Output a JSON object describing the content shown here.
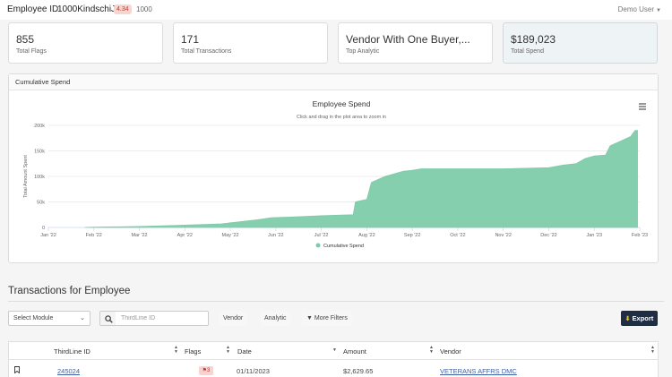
{
  "header": {
    "employee_label": "Employee ID",
    "employee_id": "1000KindschiJ",
    "score": "4.34",
    "score_total": "1000",
    "user": "Demo User"
  },
  "stats": [
    {
      "value": "855",
      "label": "Total Flags"
    },
    {
      "value": "171",
      "label": "Total Transactions"
    },
    {
      "value": "Vendor With One Buyer,...",
      "label": "Top Analytic"
    },
    {
      "value": "$189,023",
      "label": "Total Spend"
    }
  ],
  "chart_card": {
    "title": "Cumulative Spend"
  },
  "chart_data": {
    "type": "area",
    "title": "Employee Spend",
    "subtitle": "Click and drag in the plot area to zoom in",
    "ylabel": "Total Amount Spent",
    "xlabel": "",
    "x_ticks": [
      "Jan '22",
      "Feb '22",
      "Mar '22",
      "Apr '22",
      "May '22",
      "Jun '22",
      "Jul '22",
      "Aug '22",
      "Sep '22",
      "Oct '22",
      "Nov '22",
      "Dec '22",
      "Jan '23",
      "Feb '23"
    ],
    "y_ticks": [
      "0",
      "50k",
      "100k",
      "150k",
      "200k"
    ],
    "ylim": [
      0,
      200000
    ],
    "legend": "bottom-center",
    "series": [
      {
        "name": "Cumulative Spend",
        "color": "#7ecbaa",
        "points": [
          [
            0.8,
            0
          ],
          [
            1.0,
            500
          ],
          [
            2.0,
            2000
          ],
          [
            3.0,
            4500
          ],
          [
            3.8,
            7000
          ],
          [
            4.1,
            10000
          ],
          [
            4.6,
            15000
          ],
          [
            4.9,
            19000
          ],
          [
            5.5,
            21000
          ],
          [
            6.0,
            23000
          ],
          [
            6.7,
            25000
          ],
          [
            6.75,
            50000
          ],
          [
            7.0,
            55000
          ],
          [
            7.1,
            88000
          ],
          [
            7.4,
            100000
          ],
          [
            7.8,
            110000
          ],
          [
            8.0,
            112000
          ],
          [
            8.2,
            115000
          ],
          [
            10.0,
            115000
          ],
          [
            11.0,
            117000
          ],
          [
            11.3,
            122000
          ],
          [
            11.6,
            125000
          ],
          [
            11.8,
            135000
          ],
          [
            12.0,
            140000
          ],
          [
            12.25,
            142000
          ],
          [
            12.35,
            160000
          ],
          [
            12.6,
            170000
          ],
          [
            12.8,
            178000
          ],
          [
            12.9,
            190000
          ],
          [
            12.95,
            190000
          ]
        ]
      }
    ],
    "menu_icon": "hamburger-icon"
  },
  "transactions": {
    "title": "Transactions for Employee",
    "module_select": "Select Module",
    "search_placeholder": "ThirdLine ID",
    "vendor_button": "Vendor",
    "analytic_button": "Analytic",
    "more_filters_button": "More Filters",
    "export_button": "Export",
    "columns": [
      "ThirdLine ID",
      "Flags",
      "Date",
      "Amount",
      "Vendor"
    ],
    "rows": [
      {
        "id": "245024",
        "flags": "3",
        "date": "01/11/2023",
        "amount": "$2,629.65",
        "vendor": "VETERANS AFFRS DMC"
      }
    ]
  }
}
